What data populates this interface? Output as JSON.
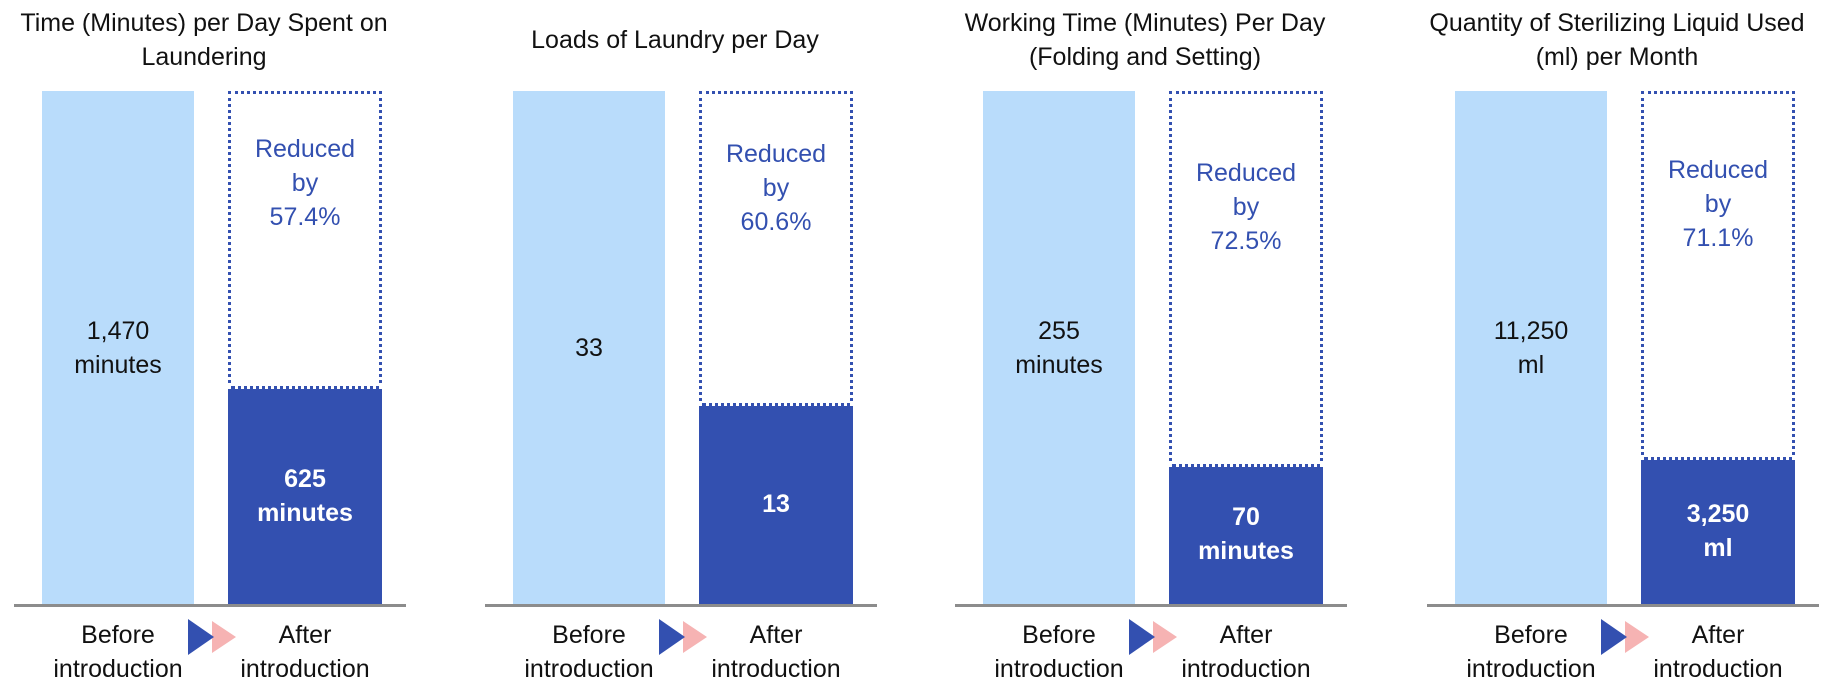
{
  "chart_data": [
    {
      "type": "bar",
      "title": "Time (Minutes) per Day Spent on Laundering",
      "categories": [
        "Before introduction",
        "After introduction"
      ],
      "values": [
        1470,
        625
      ],
      "value_labels": [
        "1,470 minutes",
        "625 minutes"
      ],
      "colors": [
        "#b9dcfb",
        "#3350b0"
      ],
      "annotation": "Reduced by 57.4%"
    },
    {
      "type": "bar",
      "title": "Loads of Laundry per Day",
      "categories": [
        "Before introduction",
        "After introduction"
      ],
      "values": [
        33,
        13
      ],
      "colors": [
        "#b9dcfb",
        "#3350b0"
      ],
      "annotation": "Reduced by 60.6%"
    },
    {
      "type": "bar",
      "title": "Working Time (Minutes) Per Day (Folding and Setting)",
      "categories": [
        "Before introduction",
        "After introduction"
      ],
      "values": [
        255,
        70
      ],
      "value_labels": [
        "255 minutes",
        "70 minutes"
      ],
      "colors": [
        "#b9dcfb",
        "#3350b0"
      ],
      "annotation": "Reduced by 72.5%"
    },
    {
      "type": "bar",
      "title": "Quantity of Sterilizing Liquid Used (ml) per Month",
      "categories": [
        "Before introduction",
        "After introduction"
      ],
      "values": [
        11250,
        3250
      ],
      "value_labels": [
        "11,250 ml",
        "3,250 ml"
      ],
      "colors": [
        "#b9dcfb",
        "#3350b0"
      ],
      "annotation": "Reduced by 71.1%"
    }
  ]
}
